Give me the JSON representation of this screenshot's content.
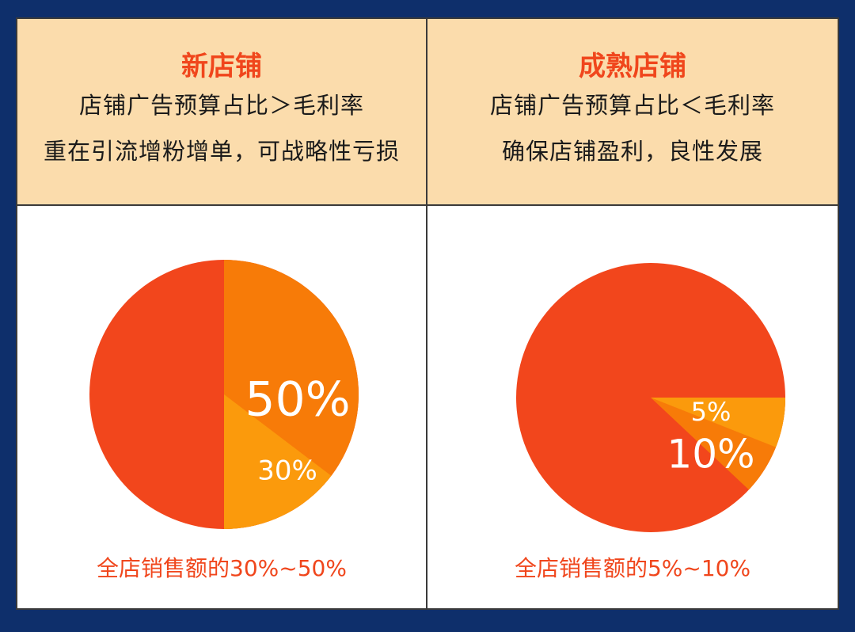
{
  "panels": [
    {
      "title": "新店铺",
      "line1": "店铺广告预算占比＞毛利率",
      "line2": "重在引流增粉增单，可战略性亏损",
      "footer": "全店销售额的30%~50%"
    },
    {
      "title": "成熟店铺",
      "line1": "店铺广告预算占比＜毛利率",
      "line2": "确保店铺盈利，良性发展",
      "footer": "全店销售额的5%~10%"
    }
  ],
  "colors": {
    "red": "#f2461c",
    "orange_dark": "#f77b08",
    "orange_light": "#fb9a0c",
    "header_bg": "#fbdcac",
    "frame_bg": "#0e2f6b"
  },
  "chart_data": [
    {
      "type": "pie",
      "slices": [
        {
          "label": "50%",
          "value": 50
        },
        {
          "label": "30%",
          "value": 30
        }
      ]
    },
    {
      "type": "pie",
      "slices": [
        {
          "label": "5%",
          "value": 5
        },
        {
          "label": "10%",
          "value": 10
        }
      ]
    }
  ]
}
